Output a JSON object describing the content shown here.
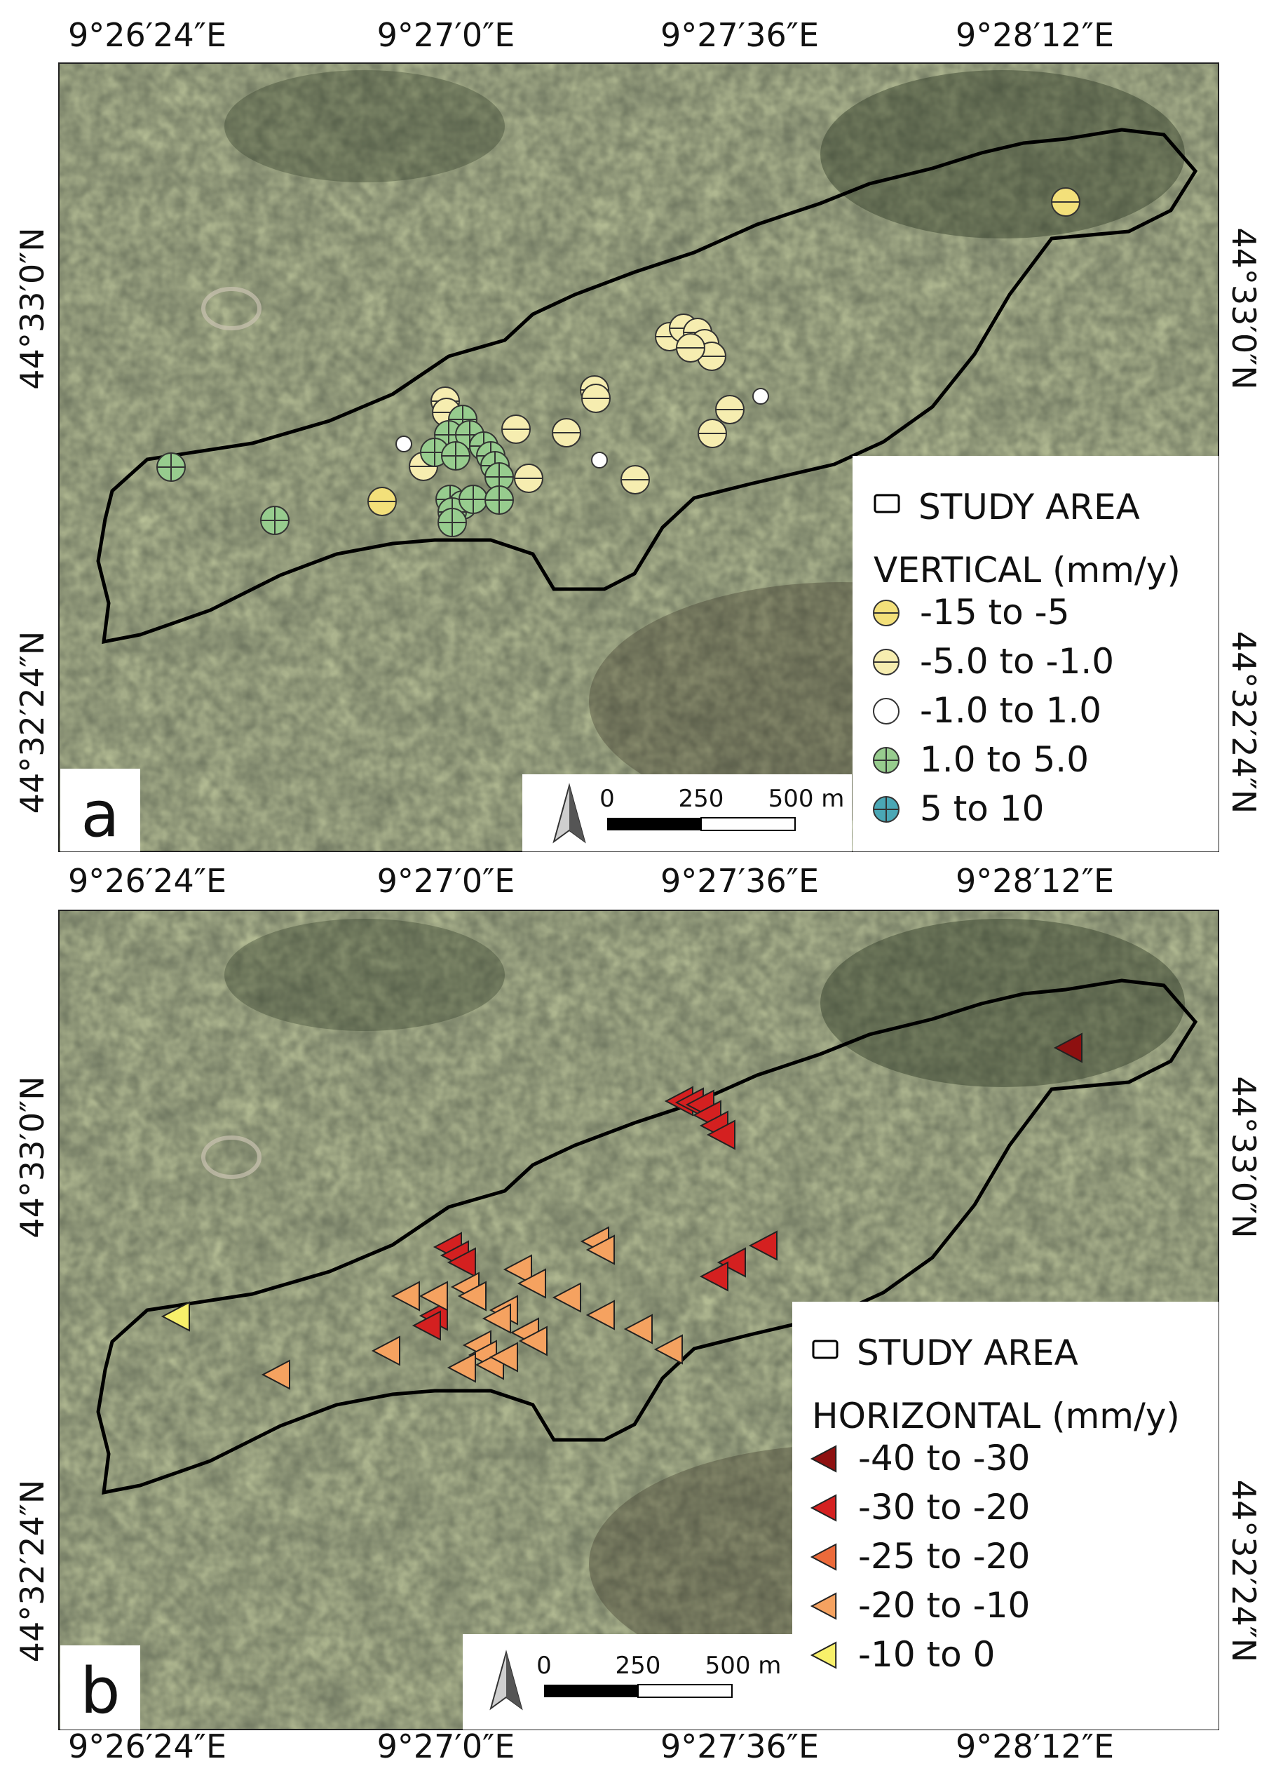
{
  "panels": [
    {
      "letter": "a",
      "legend": {
        "study_area": "STUDY AREA",
        "title": "VERTICAL (mm/y)",
        "classes": [
          {
            "label": "-15 to -5",
            "color": "#f3e07a",
            "symbol": "circle-h"
          },
          {
            "label": "-5.0 to -1.0",
            "color": "#f6edb0",
            "symbol": "circle-h"
          },
          {
            "label": "-1.0 to 1.0",
            "color": "#ffffff",
            "symbol": "circle"
          },
          {
            "label": "1.0 to 5.0",
            "color": "#97cc8e",
            "symbol": "circle-plus"
          },
          {
            "label": "5 to 10",
            "color": "#4aa7b5",
            "symbol": "circle-plus"
          }
        ]
      },
      "scale": {
        "zero": "0",
        "mid": "250",
        "end": "500 m"
      }
    },
    {
      "letter": "b",
      "legend": {
        "study_area": "STUDY AREA",
        "title": "HORIZONTAL (mm/y)",
        "classes": [
          {
            "label": "-40 to -30",
            "color": "#8e1010",
            "symbol": "triangle"
          },
          {
            "label": "-30 to -20",
            "color": "#d42020",
            "symbol": "triangle"
          },
          {
            "label": "-25 to -20",
            "color": "#ec6a3a",
            "symbol": "triangle"
          },
          {
            "label": "-20 to -10",
            "color": "#f5a260",
            "symbol": "triangle"
          },
          {
            "label": "-10 to 0",
            "color": "#f8f06a",
            "symbol": "triangle"
          }
        ]
      },
      "scale": {
        "zero": "0",
        "mid": "250",
        "end": "500 m"
      }
    }
  ],
  "lon_labels": [
    "9°26′24″E",
    "9°27′0″E",
    "9°27′36″E",
    "9°28′12″E"
  ],
  "lat_labels": [
    "44°33′0″N",
    "44°32′24″N"
  ],
  "colors": {
    "vertical_strong": "#f3e07a",
    "vertical_weak": "#f6edb0",
    "stable": "#ffffff",
    "uplift": "#97cc8e",
    "horizontal_dark": "#8e1010",
    "horizontal_red": "#d42020",
    "horizontal_orange": "#f5a260",
    "horizontal_yellow": "#f8f06a",
    "boundary": "#000000"
  }
}
